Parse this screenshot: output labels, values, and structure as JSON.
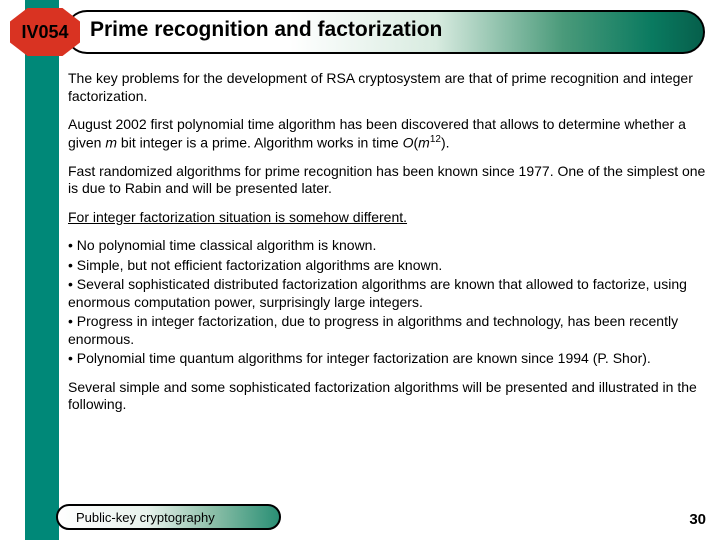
{
  "header": {
    "code": "IV054",
    "title": "Prime recognition and factorization"
  },
  "paragraphs": {
    "p1": "The key problems for the development of RSA cryptosystem are that of prime recognition and integer factorization.",
    "p2_a": "August 2002 first polynomial time algorithm has been discovered that allows to determine whether a given ",
    "p2_m": "m",
    "p2_b": " bit integer is a prime. Algorithm works in time ",
    "p2_O": "O",
    "p2_c": "(",
    "p2_m2": "m",
    "p2_exp": "12",
    "p2_d": ").",
    "p3": "Fast randomized algorithms for prime recognition has been known since 1977. One of the simplest one is due to Rabin and will be presented later.",
    "p4": "For integer factorization situation is somehow different.",
    "b1": "•  No polynomial time classical algorithm is known.",
    "b2": "•  Simple, but not efficient factorization algorithms are known.",
    "b3": "•  Several sophisticated distributed factorization algorithms are known that allowed to factorize, using enormous computation power, surprisingly large integers.",
    "b4": "•  Progress in integer factorization, due to progress in algorithms and technology, has been recently enormous.",
    "b5": "•  Polynomial time quantum algorithms for integer factorization are known since 1994 (P. Shor).",
    "p5": "Several simple and some sophisticated factorization algorithms will be presented and illustrated in the following."
  },
  "footer": {
    "label": "Public-key cryptography",
    "page": "30"
  },
  "colors": {
    "teal": "#008878",
    "octagon": "#d93322"
  }
}
